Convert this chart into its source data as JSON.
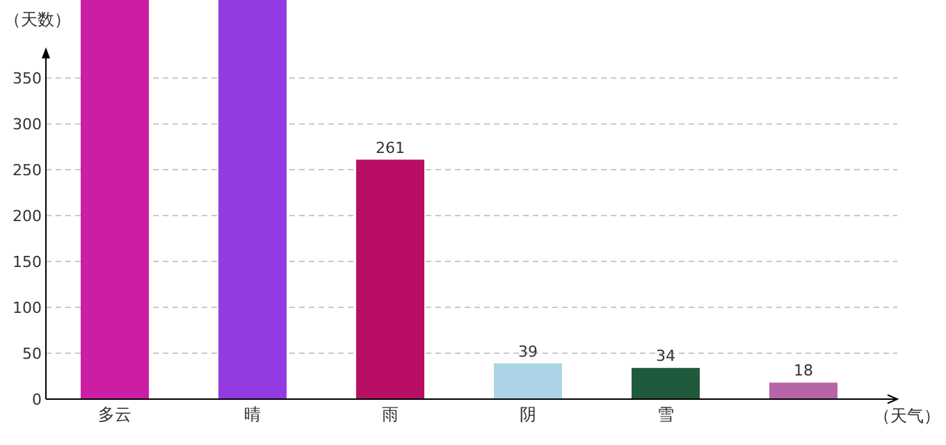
{
  "chart_data": {
    "type": "bar",
    "xlabel": "（天气）",
    "ylabel": "（天数）",
    "categories": [
      "多云",
      "晴",
      "雨",
      "阴",
      "雪",
      null
    ],
    "values": [
      435,
      435,
      261,
      39,
      34,
      18
    ],
    "colors": [
      "#cc1ea4",
      "#933be3",
      "#b80f65",
      "#abd5e6",
      "#1f5a3c",
      "#b864a8"
    ],
    "value_labels": [
      null,
      null,
      "261",
      "39",
      "34",
      "18"
    ],
    "ylim": [
      0,
      435
    ],
    "yticks": [
      0,
      50,
      100,
      150,
      200,
      250,
      300,
      350
    ],
    "grid": "y"
  }
}
